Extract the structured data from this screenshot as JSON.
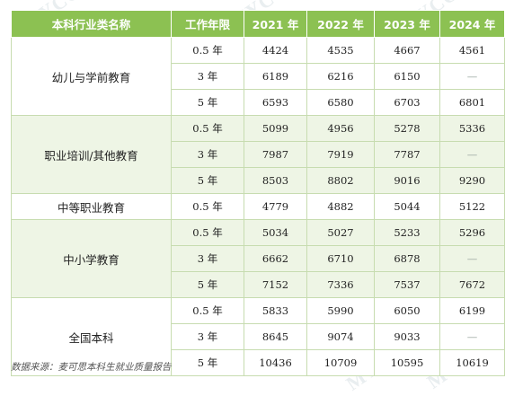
{
  "watermark": "MYCOS",
  "header": {
    "category": "本科行业类名称",
    "years_worked": "工作年限",
    "y2021": "2021 年",
    "y2022": "2022 年",
    "y2023": "2023 年",
    "y2024": "2024 年"
  },
  "groups": [
    {
      "name": "幼儿与学前教育",
      "rows": [
        {
          "period": "0.5 年",
          "v2021": "4424",
          "v2022": "4535",
          "v2023": "4667",
          "v2024": "4561"
        },
        {
          "period": "3 年",
          "v2021": "6189",
          "v2022": "6216",
          "v2023": "6150",
          "v2024": "—"
        },
        {
          "period": "5 年",
          "v2021": "6593",
          "v2022": "6580",
          "v2023": "6703",
          "v2024": "6801"
        }
      ]
    },
    {
      "name": "职业培训/其他教育",
      "rows": [
        {
          "period": "0.5 年",
          "v2021": "5099",
          "v2022": "4956",
          "v2023": "5278",
          "v2024": "5336"
        },
        {
          "period": "3 年",
          "v2021": "7987",
          "v2022": "7919",
          "v2023": "7787",
          "v2024": "—"
        },
        {
          "period": "5 年",
          "v2021": "8503",
          "v2022": "8802",
          "v2023": "9016",
          "v2024": "9290"
        }
      ]
    },
    {
      "name": "中等职业教育",
      "rows": [
        {
          "period": "0.5 年",
          "v2021": "4779",
          "v2022": "4882",
          "v2023": "5044",
          "v2024": "5122"
        }
      ]
    },
    {
      "name": "中小学教育",
      "rows": [
        {
          "period": "0.5 年",
          "v2021": "5034",
          "v2022": "5027",
          "v2023": "5233",
          "v2024": "5296"
        },
        {
          "period": "3 年",
          "v2021": "6662",
          "v2022": "6710",
          "v2023": "6878",
          "v2024": "—"
        },
        {
          "period": "5 年",
          "v2021": "7152",
          "v2022": "7336",
          "v2023": "7537",
          "v2024": "7672"
        }
      ]
    },
    {
      "name": "全国本科",
      "rows": [
        {
          "period": "0.5 年",
          "v2021": "5833",
          "v2022": "5990",
          "v2023": "6050",
          "v2024": "6199"
        },
        {
          "period": "3 年",
          "v2021": "8645",
          "v2022": "9074",
          "v2023": "9033",
          "v2024": "—"
        },
        {
          "period": "5 年",
          "v2021": "10436",
          "v2022": "10709",
          "v2023": "10595",
          "v2024": "10619"
        }
      ]
    }
  ],
  "source": "数据来源：麦可思本科生就业质量报告",
  "colors": {
    "header_bg": "#8cc152",
    "band_bg": "#eef5e5",
    "border": "#c7dcb0"
  }
}
